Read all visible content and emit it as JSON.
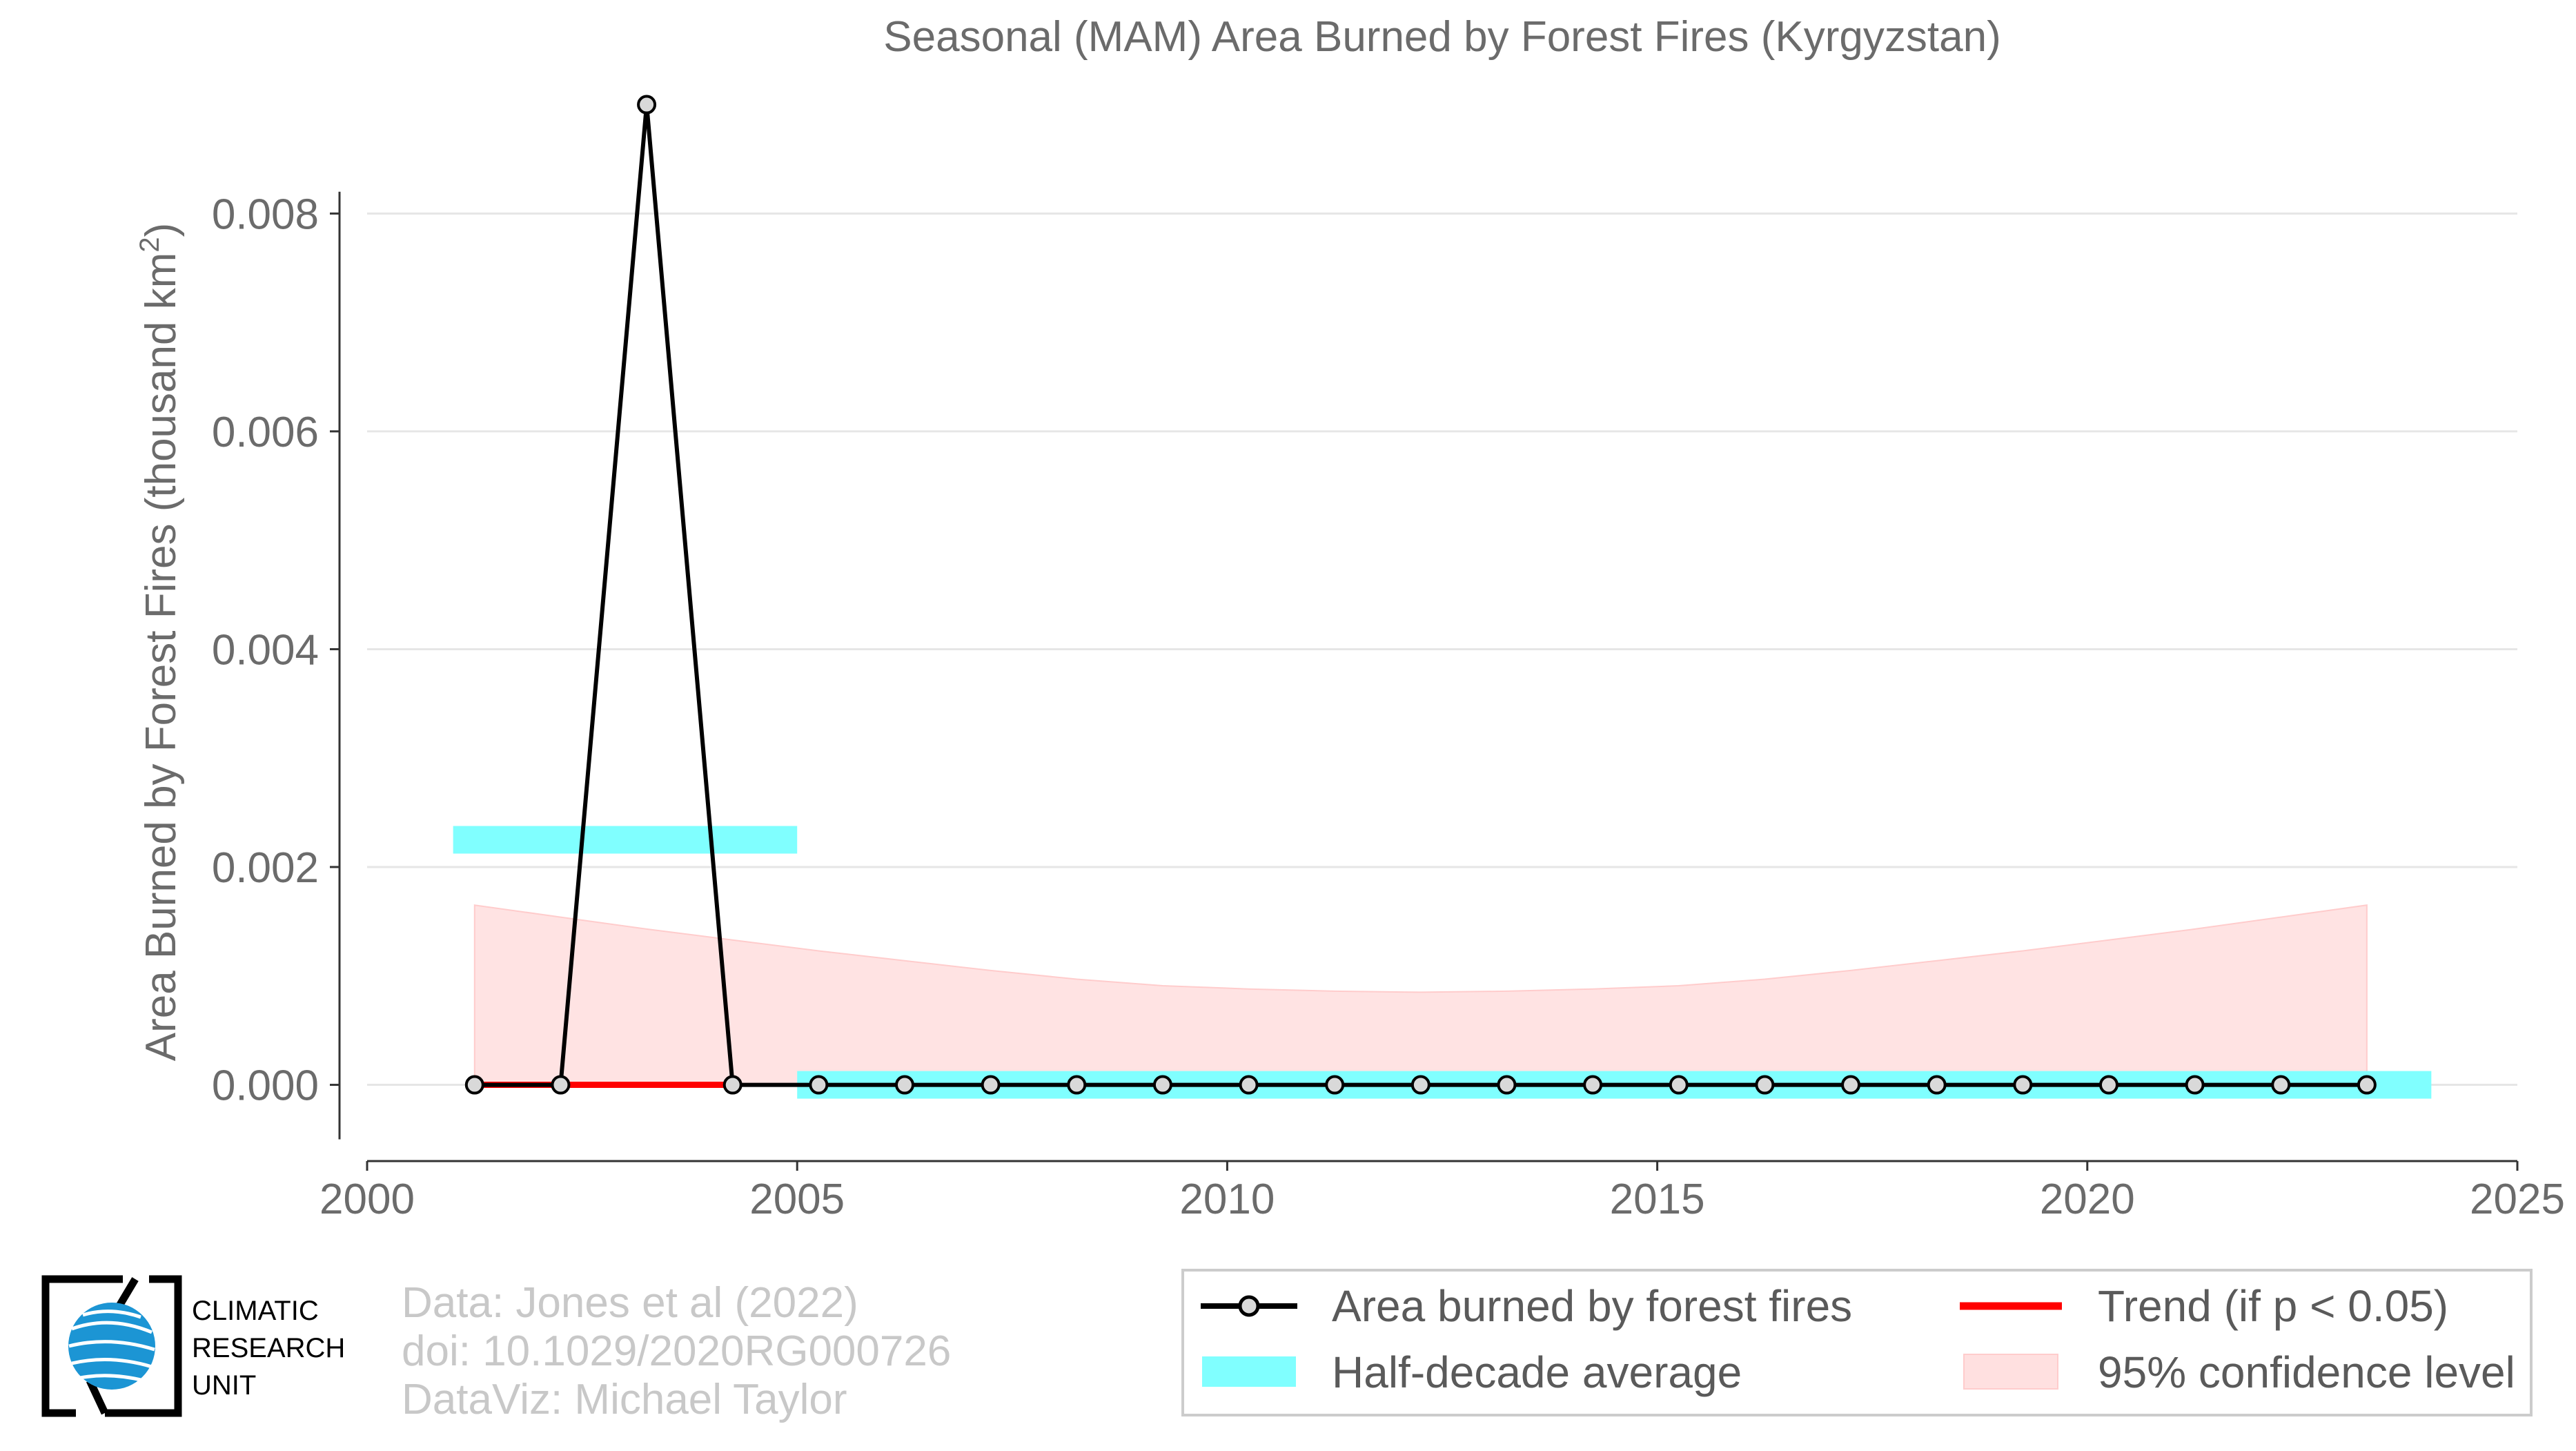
{
  "chart_data": {
    "type": "line",
    "title": "Seasonal (MAM) Area Burned by Forest Fires (Kyrgyzstan)",
    "ylabel": "Area Burned by Forest Fires (thousand km",
    "ylabel_superscript": "2",
    "ylabel_close": ")",
    "xlim": [
      2000,
      2025
    ],
    "ylim": [
      -0.0007,
      0.0092
    ],
    "x_ticks": [
      2000,
      2005,
      2010,
      2015,
      2020,
      2025
    ],
    "x_tick_labels": [
      "2000",
      "2005",
      "2010",
      "2015",
      "2020",
      "2025"
    ],
    "y_ticks": [
      0.0,
      0.002,
      0.004,
      0.006,
      0.008
    ],
    "y_tick_labels": [
      "0.000",
      "0.002",
      "0.004",
      "0.006",
      "0.008"
    ],
    "grid": true,
    "legend_position": "bottom-right",
    "series": [
      {
        "name": "Area burned by forest fires",
        "color": "#000000",
        "x": [
          2001.25,
          2002.25,
          2003.25,
          2004.25,
          2005.25,
          2006.25,
          2007.25,
          2008.25,
          2009.25,
          2010.25,
          2011.25,
          2012.25,
          2013.25,
          2014.25,
          2015.25,
          2016.25,
          2017.25,
          2018.25,
          2019.25,
          2020.25,
          2021.25,
          2022.25,
          2023.25
        ],
        "y": [
          0,
          0,
          0.009,
          0,
          0,
          0,
          0,
          0,
          0,
          0,
          0,
          0,
          0,
          0,
          0,
          0,
          0,
          0,
          0,
          0,
          0,
          0,
          0
        ]
      },
      {
        "name": "Half-decade average",
        "color": "#80ffff",
        "segments": [
          {
            "x_start": 2001.0,
            "x_end": 2005.0,
            "value": 0.00225
          },
          {
            "x_start": 2005.0,
            "x_end": 2024.0,
            "value": 0.0
          }
        ]
      },
      {
        "name": "Trend (if p < 0.05)",
        "color": "#ff0000",
        "x": [
          2001.25,
          2004.25
        ],
        "y": [
          0,
          0
        ]
      },
      {
        "name": "95% confidence level",
        "color": "#ffe0e0",
        "x": [
          2001.25,
          2002.25,
          2003.25,
          2004.25,
          2005.25,
          2006.25,
          2007.25,
          2008.25,
          2009.25,
          2010.25,
          2011.25,
          2012.25,
          2013.25,
          2014.25,
          2015.25,
          2016.25,
          2017.25,
          2018.25,
          2019.25,
          2020.25,
          2021.25,
          2022.25,
          2023.25
        ],
        "upper": [
          0.00165,
          0.00154,
          0.00143,
          0.00133,
          0.00123,
          0.00114,
          0.00105,
          0.00097,
          0.00091,
          0.00088,
          0.00086,
          0.00085,
          0.00086,
          0.00088,
          0.00091,
          0.00097,
          0.00105,
          0.00114,
          0.00123,
          0.00133,
          0.00143,
          0.00154,
          0.00165
        ],
        "lower": [
          0,
          0,
          0,
          0,
          0,
          0,
          0,
          0,
          0,
          0,
          0,
          0,
          0,
          0,
          0,
          0,
          0,
          0,
          0,
          0,
          0,
          0,
          0
        ]
      }
    ]
  },
  "legend": {
    "items": [
      {
        "label": "Area burned by forest fires",
        "key": "line",
        "color": "#000000"
      },
      {
        "label": "Half-decade average",
        "key": "band",
        "color": "#80ffff"
      },
      {
        "label": "Trend (if p < 0.05)",
        "key": "line",
        "color": "#ff0000"
      },
      {
        "label": "95% confidence level",
        "key": "fill",
        "color": "#ffe0e0"
      }
    ]
  },
  "credits": {
    "line1": "Data: Jones et al (2022)",
    "line2": "doi: 10.1029/2020RG000726",
    "line3": "DataViz: Michael Taylor"
  },
  "logo": {
    "line1": "CLIMATIC",
    "line2": "RESEARCH",
    "line3": "UNIT",
    "globe_color": "#1c95d4"
  }
}
